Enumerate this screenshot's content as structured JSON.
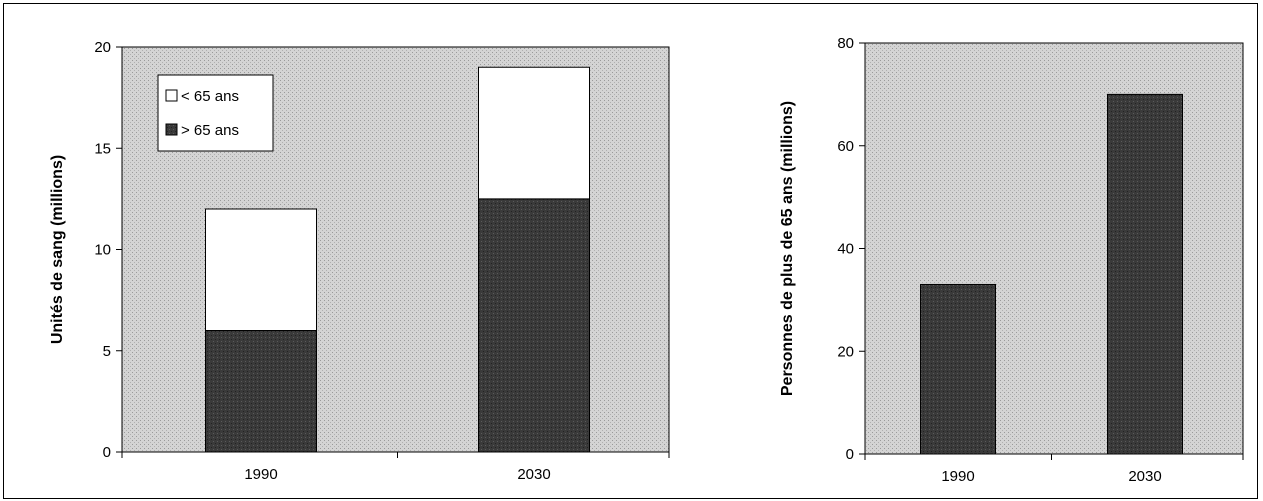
{
  "colors": {
    "plot_background": "#cfcfcf",
    "older_fill": "#3a3a3a",
    "younger_fill": "#ffffff",
    "axis": "#000000"
  },
  "chart_data": [
    {
      "type": "bar",
      "stacked": true,
      "categories": [
        "1990",
        "2030"
      ],
      "series": [
        {
          "name": "> 65 ans",
          "values": [
            6,
            12.5
          ],
          "color": "#3a3a3a"
        },
        {
          "name": "< 65 ans",
          "values": [
            6,
            6.5
          ],
          "color": "#ffffff"
        }
      ],
      "ylabel": "Unités de sang (millions)",
      "xlabel": "",
      "ylim": [
        0,
        20
      ],
      "yticks": [
        0,
        5,
        10,
        15,
        20
      ],
      "legend": {
        "position": "top-left",
        "entries": [
          "< 65 ans",
          "> 65 ans"
        ]
      },
      "grid": false
    },
    {
      "type": "bar",
      "categories": [
        "1990",
        "2030"
      ],
      "series": [
        {
          "values": [
            33,
            70
          ],
          "color": "#3a3a3a"
        }
      ],
      "ylabel": "Personnes de plus de 65 ans (millions)",
      "xlabel": "",
      "ylim": [
        0,
        80
      ],
      "yticks": [
        0,
        20,
        40,
        60,
        80
      ],
      "grid": false
    }
  ]
}
